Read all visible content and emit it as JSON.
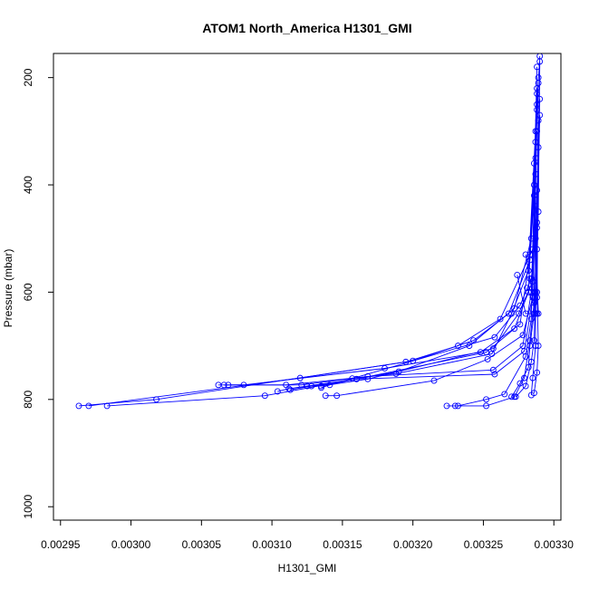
{
  "chart_data": {
    "type": "line",
    "title": "ATOM1 North_America H1301_GMI",
    "xlabel": "H1301_GMI",
    "ylabel": "Pressure (mbar)",
    "xlim": [
      0.002945,
      0.003305
    ],
    "ylim": [
      1025,
      155
    ],
    "y_reversed": true,
    "x_ticks": [
      0.00295,
      0.003,
      0.00305,
      0.0031,
      0.00315,
      0.0032,
      0.00325,
      0.0033
    ],
    "x_tick_labels": [
      "0.00295",
      "0.00300",
      "0.00305",
      "0.00310",
      "0.00315",
      "0.00320",
      "0.00325",
      "0.00330"
    ],
    "y_ticks": [
      200,
      400,
      600,
      800,
      1000
    ],
    "y_tick_labels": [
      "200",
      "400",
      "600",
      "800",
      "1000"
    ],
    "grid": false,
    "marker": "open-circle",
    "color": "#0000ff",
    "series": [
      {
        "x": [
          0.002963,
          0.003018,
          0.003195,
          0.003232,
          0.003262,
          0.003285,
          0.003287,
          0.003288,
          0.00329
        ],
        "y": [
          812,
          800,
          730,
          700,
          650,
          520,
          380,
          250,
          160
        ]
      },
      {
        "x": [
          0.00297,
          0.00312,
          0.0032,
          0.003243,
          0.003268,
          0.003283,
          0.003286,
          0.003288
        ],
        "y": [
          812,
          760,
          728,
          690,
          640,
          540,
          420,
          220
        ]
      },
      {
        "x": [
          0.002983,
          0.003095,
          0.00319,
          0.00324,
          0.003272,
          0.003284,
          0.003287,
          0.003289
        ],
        "y": [
          812,
          793,
          748,
          700,
          630,
          500,
          350,
          200
        ]
      },
      {
        "x": [
          0.003062,
          0.00308,
          0.00318,
          0.003248,
          0.003276,
          0.003283,
          0.003286,
          0.003288
        ],
        "y": [
          773,
          773,
          742,
          712,
          660,
          530,
          400,
          180
        ]
      },
      {
        "x": [
          0.003066,
          0.00311,
          0.003188,
          0.003256,
          0.00327,
          0.003282,
          0.003287
        ],
        "y": [
          773,
          773,
          752,
          715,
          640,
          560,
          300
        ]
      },
      {
        "x": [
          0.003069,
          0.003121,
          0.003168,
          0.003257,
          0.003278,
          0.003284,
          0.003288
        ],
        "y": [
          773,
          773,
          757,
          745,
          700,
          600,
          260
        ]
      },
      {
        "x": [
          0.003104,
          0.003112,
          0.00316,
          0.003258,
          0.003279,
          0.003285,
          0.003287
        ],
        "y": [
          785,
          780,
          762,
          753,
          710,
          610,
          320
        ]
      },
      {
        "x": [
          0.003113,
          0.003128,
          0.00316,
          0.003252,
          0.003272,
          0.003282,
          0.003286
        ],
        "y": [
          782,
          775,
          762,
          712,
          668,
          600,
          360
        ]
      },
      {
        "x": [
          0.003125,
          0.003135,
          0.003168,
          0.003257,
          0.003275,
          0.003285,
          0.003287
        ],
        "y": [
          775,
          775,
          762,
          705,
          640,
          580,
          440
        ]
      },
      {
        "x": [
          0.003135,
          0.003141,
          0.003157,
          0.003258,
          0.003276,
          0.003284,
          0.003288
        ],
        "y": [
          778,
          773,
          761,
          684,
          625,
          575,
          470
        ]
      },
      {
        "x": [
          0.003138,
          0.003146,
          0.003215,
          0.003253,
          0.003278,
          0.003286,
          0.003288
        ],
        "y": [
          793,
          793,
          765,
          725,
          680,
          600,
          410
        ]
      },
      {
        "x": [
          0.003224,
          0.003232,
          0.003252,
          0.003265,
          0.00328,
          0.003284,
          0.003288
        ],
        "y": [
          812,
          812,
          800,
          790,
          720,
          650,
          300
        ]
      },
      {
        "x": [
          0.00323,
          0.003252,
          0.003272,
          0.003279,
          0.003283,
          0.003286,
          0.003288
        ],
        "y": [
          812,
          812,
          795,
          760,
          690,
          620,
          230
        ]
      },
      {
        "x": [
          0.00327,
          0.003276,
          0.003282,
          0.003283,
          0.003286,
          0.003288
        ],
        "y": [
          795,
          770,
          740,
          700,
          640,
          520
        ]
      },
      {
        "x": [
          0.003273,
          0.00328,
          0.003284,
          0.003286,
          0.003287,
          0.003289
        ],
        "y": [
          795,
          775,
          730,
          690,
          600,
          280
        ]
      },
      {
        "x": [
          0.003284,
          0.003285,
          0.003287,
          0.003287,
          0.003289,
          0.00329
        ],
        "y": [
          792,
          760,
          700,
          640,
          450,
          170
        ]
      },
      {
        "x": [
          0.003286,
          0.003288,
          0.003289,
          0.003288,
          0.003289
        ],
        "y": [
          788,
          750,
          700,
          600,
          210
        ]
      },
      {
        "x": [
          0.003281,
          0.003288,
          0.003286,
          0.003288,
          0.003289
        ],
        "y": [
          592,
          640,
          640,
          610,
          330
        ]
      },
      {
        "x": [
          0.003274,
          0.00328,
          0.003289,
          0.003287,
          0.00329
        ],
        "y": [
          568,
          640,
          640,
          500,
          240
        ]
      },
      {
        "x": [
          0.00328,
          0.003283,
          0.003287,
          0.003288,
          0.00329
        ],
        "y": [
          530,
          575,
          640,
          480,
          270
        ]
      }
    ]
  }
}
